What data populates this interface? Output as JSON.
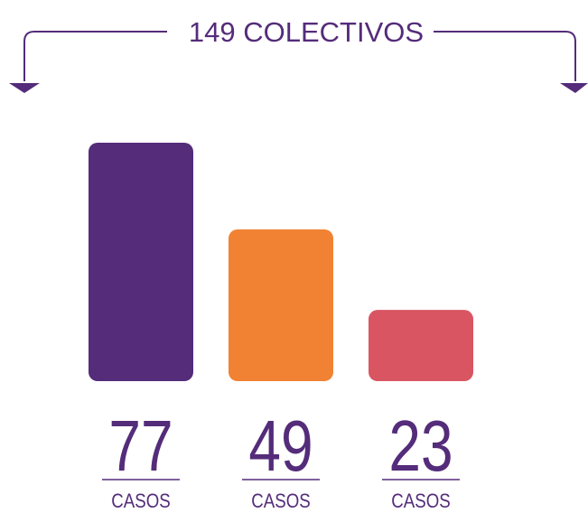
{
  "chart_data": {
    "type": "bar",
    "title": "149 COLECTIVOS",
    "values": [
      77,
      49,
      23
    ],
    "colors": [
      "#542c7a",
      "#f28233",
      "#d95562"
    ],
    "unit_label": "CASOS",
    "text_color": "#542c7a"
  }
}
